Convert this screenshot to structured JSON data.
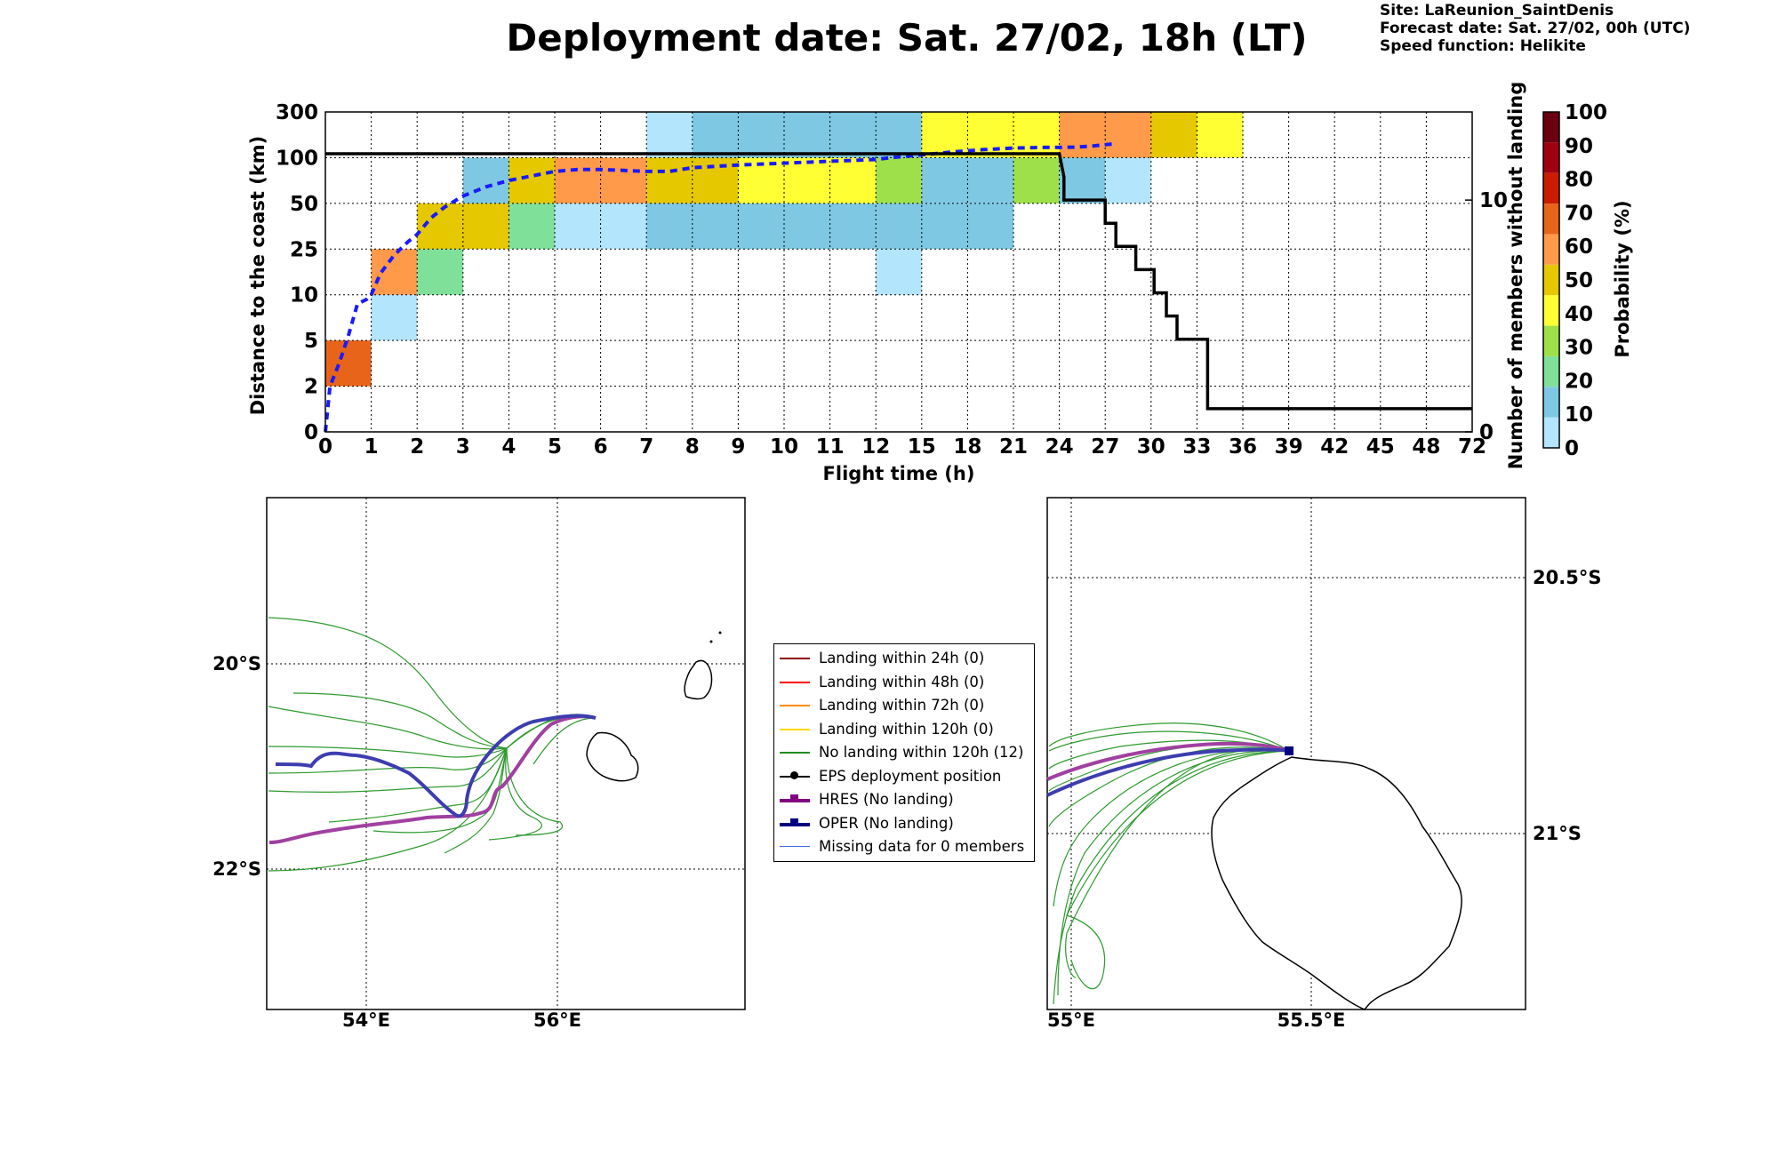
{
  "header": {
    "title": "Deployment date: Sat. 27/02, 18h (LT)",
    "site": "Site: LaReunion_SaintDenis",
    "forecast": "Forecast date: Sat. 27/02, 00h (UTC)",
    "speed": "Speed function: Helikite"
  },
  "chart_data": [
    {
      "type": "heatmap",
      "xlabel": "Flight time (h)",
      "ylabel": "Distance to the coast (km)",
      "y2label": "Number of members without landing",
      "x_ticks": [
        "0",
        "1",
        "2",
        "3",
        "4",
        "5",
        "6",
        "7",
        "8",
        "9",
        "10",
        "11",
        "12",
        "15",
        "18",
        "21",
        "24",
        "27",
        "30",
        "33",
        "36",
        "39",
        "42",
        "45",
        "48",
        "72"
      ],
      "y_ticks": [
        "0",
        "2",
        "5",
        "10",
        "25",
        "50",
        "100",
        "300"
      ],
      "y2_ticks": [
        "0",
        "10"
      ],
      "colorbar": {
        "label": "Probability (%)",
        "ticks": [
          "0",
          "10",
          "20",
          "30",
          "40",
          "50",
          "60",
          "70",
          "80",
          "90",
          "100"
        ],
        "colors": [
          "#b3e5fc",
          "#7ec8e3",
          "#7fe09a",
          "#9ee04a",
          "#ffff33",
          "#e5c800",
          "#ff9a4a",
          "#e8641a",
          "#cc1c00",
          "#a00010",
          "#6b0010"
        ]
      },
      "cells": [
        {
          "x": [
            0,
            1
          ],
          "y": [
            2,
            5
          ],
          "prob": 70
        },
        {
          "x": [
            1,
            2
          ],
          "y": [
            5,
            10
          ],
          "prob": 0
        },
        {
          "x": [
            1,
            2
          ],
          "y": [
            10,
            25
          ],
          "prob": 60
        },
        {
          "x": [
            2,
            3
          ],
          "y": [
            10,
            25
          ],
          "prob": 20
        },
        {
          "x": [
            2,
            3
          ],
          "y": [
            25,
            50
          ],
          "prob": 50
        },
        {
          "x": [
            3,
            4
          ],
          "y": [
            25,
            50
          ],
          "prob": 50
        },
        {
          "x": [
            3,
            4
          ],
          "y": [
            50,
            100
          ],
          "prob": 10
        },
        {
          "x": [
            4,
            5
          ],
          "y": [
            25,
            50
          ],
          "prob": 20
        },
        {
          "x": [
            4,
            5
          ],
          "y": [
            50,
            100
          ],
          "prob": 50
        },
        {
          "x": [
            5,
            7
          ],
          "y": [
            25,
            50
          ],
          "prob": 0
        },
        {
          "x": [
            5,
            7
          ],
          "y": [
            50,
            100
          ],
          "prob": 60
        },
        {
          "x": [
            7,
            12
          ],
          "y": [
            25,
            50
          ],
          "prob": 10
        },
        {
          "x": [
            7,
            9
          ],
          "y": [
            50,
            100
          ],
          "prob": 50
        },
        {
          "x": [
            9,
            12
          ],
          "y": [
            50,
            100
          ],
          "prob": 40
        },
        {
          "x": [
            7,
            8
          ],
          "y": [
            100,
            300
          ],
          "prob": 0
        },
        {
          "x": [
            8,
            15
          ],
          "y": [
            100,
            300
          ],
          "prob": 10
        },
        {
          "x": [
            12,
            15
          ],
          "y": [
            10,
            25
          ],
          "prob": 0
        },
        {
          "x": [
            12,
            21
          ],
          "y": [
            25,
            50
          ],
          "prob": 10
        },
        {
          "x": [
            12,
            15
          ],
          "y": [
            50,
            100
          ],
          "prob": 30
        },
        {
          "x": [
            15,
            21
          ],
          "y": [
            50,
            100
          ],
          "prob": 10
        },
        {
          "x": [
            15,
            24
          ],
          "y": [
            100,
            300
          ],
          "prob": 40
        },
        {
          "x": [
            21,
            24
          ],
          "y": [
            50,
            100
          ],
          "prob": 30
        },
        {
          "x": [
            24,
            27
          ],
          "y": [
            50,
            100
          ],
          "prob": 10
        },
        {
          "x": [
            27,
            30
          ],
          "y": [
            50,
            100
          ],
          "prob": 0
        },
        {
          "x": [
            24,
            30
          ],
          "y": [
            100,
            300
          ],
          "prob": 60
        },
        {
          "x": [
            30,
            33
          ],
          "y": [
            100,
            300
          ],
          "prob": 50
        },
        {
          "x": [
            33,
            36
          ],
          "y": [
            100,
            300
          ],
          "prob": 40
        }
      ],
      "series": [
        {
          "style": "blue-dashed",
          "x": [
            0,
            0.1,
            0.3,
            0.5,
            0.7,
            0.9,
            1,
            1.2,
            1.5,
            1.8,
            2,
            2.3,
            2.6,
            3,
            3.5,
            4,
            4.5,
            5,
            5.5,
            6,
            6.5,
            7,
            7.5,
            8,
            9,
            10,
            11,
            12,
            13,
            15,
            17,
            19,
            21,
            23,
            24,
            25,
            26,
            27.5
          ],
          "y": [
            0,
            2,
            3.5,
            5.5,
            9,
            9.5,
            10,
            17,
            23,
            29,
            33,
            42,
            48,
            58,
            68,
            75,
            80,
            85,
            87,
            87,
            86,
            85,
            85,
            89,
            92,
            94,
            96,
            98,
            100,
            112,
            125,
            135,
            142,
            145,
            145,
            146,
            150,
            160
          ]
        },
        {
          "style": "black-step",
          "axis": "right",
          "x": [
            0,
            24,
            24.3,
            24.3,
            27,
            27,
            27.7,
            27.7,
            29,
            29,
            30.2,
            30.2,
            31,
            31,
            31.7,
            31.7,
            33.7,
            33.7,
            72
          ],
          "y": [
            12,
            12,
            11,
            10,
            10,
            9,
            9,
            8,
            8,
            7,
            7,
            6,
            6,
            5,
            5,
            4,
            4,
            1,
            1
          ]
        }
      ]
    },
    {
      "type": "map",
      "x_ticks": [
        "54°E",
        "56°E"
      ],
      "y_ticks": [
        "20°S",
        "22°S"
      ]
    },
    {
      "type": "map",
      "x_ticks": [
        "55°E",
        "55.5°E"
      ],
      "y_ticks": [
        "20.5°S",
        "21°S"
      ]
    }
  ],
  "legend": [
    {
      "label": "Landing within 24h (0)",
      "color": "#8b0000",
      "kind": "line"
    },
    {
      "label": "Landing within 48h (0)",
      "color": "#ff0000",
      "kind": "line"
    },
    {
      "label": "Landing within 72h (0)",
      "color": "#ff8c00",
      "kind": "line"
    },
    {
      "label": "Landing within 120h (0)",
      "color": "#ffd700",
      "kind": "line"
    },
    {
      "label": "No landing within 120h (12)",
      "color": "#228b22",
      "kind": "line"
    },
    {
      "label": "EPS deployment position",
      "color": "#000000",
      "kind": "circle"
    },
    {
      "label": "HRES (No landing)",
      "color": "#800080",
      "kind": "square"
    },
    {
      "label": "OPER (No landing)",
      "color": "#000080",
      "kind": "square"
    },
    {
      "label": "Missing data for 0 members",
      "color": "#4169e1",
      "kind": "thin"
    }
  ]
}
